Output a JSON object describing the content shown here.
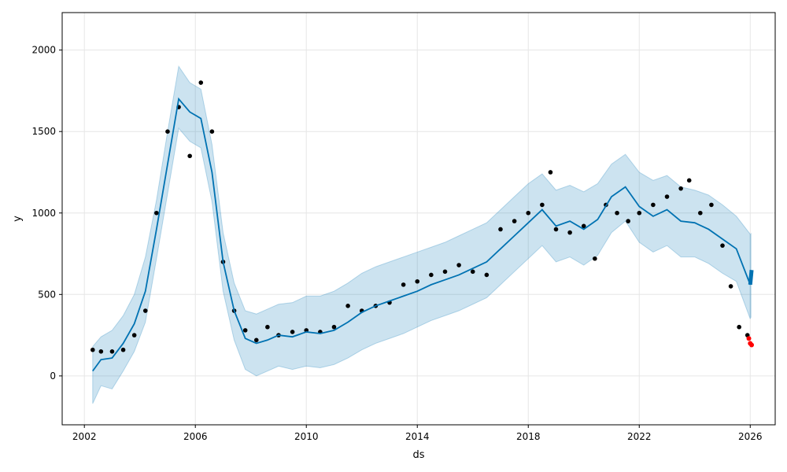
{
  "chart_data": {
    "type": "scatter",
    "xlabel": "ds",
    "ylabel": "y",
    "x_unit": "year",
    "xlim": [
      2001.2,
      2026.9
    ],
    "ylim": [
      -300,
      2230
    ],
    "x_ticks": [
      2002,
      2006,
      2010,
      2014,
      2018,
      2022,
      2026
    ],
    "x_tick_labels": [
      "2002",
      "2006",
      "2010",
      "2014",
      "2018",
      "2022",
      "2026"
    ],
    "y_ticks": [
      0,
      500,
      1000,
      1500,
      2000
    ],
    "y_tick_labels": [
      "0",
      "500",
      "1000",
      "1500",
      "2000"
    ],
    "grid": true,
    "colors": {
      "observed": "#000000",
      "forecast_line": "#0072b2",
      "interval": "#0072b2",
      "test_points": "#ff0000"
    },
    "forecast": {
      "x": [
        2002.3,
        2002.6,
        2003.0,
        2003.4,
        2003.8,
        2004.2,
        2004.6,
        2005.0,
        2005.4,
        2005.8,
        2006.2,
        2006.6,
        2007.0,
        2007.4,
        2007.8,
        2008.2,
        2008.6,
        2009.0,
        2009.5,
        2010.0,
        2010.5,
        2011.0,
        2011.5,
        2012.0,
        2012.5,
        2013.0,
        2013.5,
        2014.0,
        2014.5,
        2015.0,
        2015.5,
        2016.0,
        2016.5,
        2017.0,
        2017.5,
        2018.0,
        2018.5,
        2019.0,
        2019.5,
        2020.0,
        2020.5,
        2021.0,
        2021.5,
        2022.0,
        2022.5,
        2023.0,
        2023.5,
        2024.0,
        2024.5,
        2025.0,
        2025.5,
        2026.0
      ],
      "yhat": [
        30,
        100,
        110,
        200,
        320,
        520,
        900,
        1300,
        1700,
        1620,
        1580,
        1250,
        700,
        400,
        230,
        200,
        220,
        250,
        240,
        270,
        260,
        280,
        330,
        390,
        430,
        460,
        490,
        520,
        560,
        590,
        620,
        660,
        700,
        780,
        860,
        940,
        1020,
        920,
        950,
        900,
        960,
        1100,
        1160,
        1040,
        980,
        1020,
        950,
        940,
        900,
        840,
        780,
        560
      ],
      "upper": [
        180,
        240,
        280,
        370,
        500,
        730,
        1080,
        1500,
        1900,
        1800,
        1760,
        1420,
        880,
        570,
        400,
        380,
        410,
        440,
        450,
        490,
        490,
        520,
        570,
        630,
        670,
        700,
        730,
        760,
        790,
        820,
        860,
        900,
        940,
        1020,
        1100,
        1180,
        1240,
        1140,
        1170,
        1130,
        1180,
        1300,
        1360,
        1250,
        1200,
        1230,
        1160,
        1140,
        1110,
        1050,
        980,
        870
      ],
      "lower": [
        -170,
        -60,
        -80,
        30,
        150,
        330,
        720,
        1120,
        1520,
        1440,
        1400,
        1070,
        520,
        220,
        40,
        0,
        30,
        60,
        40,
        60,
        50,
        70,
        110,
        160,
        200,
        230,
        260,
        300,
        340,
        370,
        400,
        440,
        480,
        560,
        640,
        720,
        800,
        700,
        730,
        680,
        740,
        880,
        950,
        820,
        760,
        800,
        730,
        730,
        690,
        630,
        580,
        350
      ]
    },
    "observed": {
      "x": [
        2002.3,
        2002.6,
        2003.0,
        2003.4,
        2003.8,
        2004.2,
        2004.6,
        2005.0,
        2005.4,
        2005.8,
        2006.2,
        2006.6,
        2007.0,
        2007.4,
        2007.8,
        2008.2,
        2008.6,
        2009.0,
        2009.5,
        2010.0,
        2010.5,
        2011.0,
        2011.5,
        2012.0,
        2012.5,
        2013.0,
        2013.5,
        2014.0,
        2014.5,
        2015.0,
        2015.5,
        2016.0,
        2016.5,
        2017.0,
        2017.5,
        2018.0,
        2018.5,
        2018.8,
        2019.0,
        2019.5,
        2020.0,
        2020.4,
        2020.8,
        2021.2,
        2021.6,
        2022.0,
        2022.5,
        2023.0,
        2023.5,
        2023.8,
        2024.2,
        2024.6,
        2025.0,
        2025.3,
        2025.6,
        2025.9
      ],
      "y": [
        160,
        150,
        150,
        160,
        250,
        400,
        1000,
        1500,
        1650,
        1350,
        1800,
        1500,
        700,
        400,
        280,
        220,
        300,
        250,
        270,
        280,
        270,
        300,
        430,
        400,
        430,
        450,
        560,
        580,
        620,
        640,
        680,
        640,
        620,
        900,
        950,
        1000,
        1050,
        1250,
        900,
        880,
        920,
        720,
        1050,
        1000,
        950,
        1000,
        1050,
        1100,
        1150,
        1200,
        1000,
        1050,
        800,
        550,
        300,
        250
      ]
    },
    "test_points": {
      "x": [
        2025.95,
        2026.0,
        2026.05
      ],
      "y": [
        230,
        200,
        190
      ]
    },
    "forecast_future": {
      "x": [
        2026.0,
        2026.05
      ],
      "yhat": [
        560,
        650
      ],
      "upper": [
        870,
        880
      ],
      "lower": [
        350,
        360
      ]
    }
  }
}
